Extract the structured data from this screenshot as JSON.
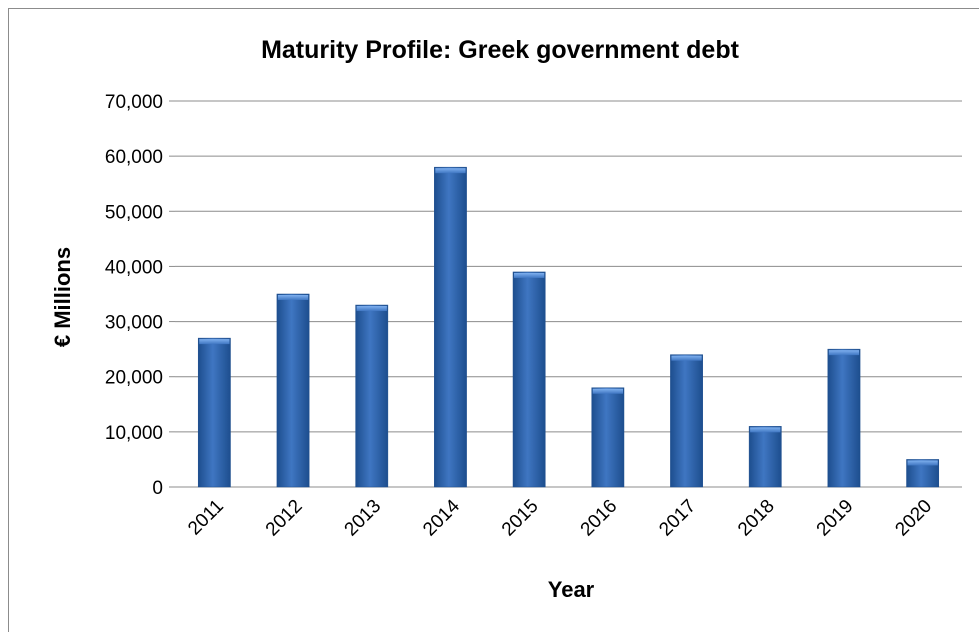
{
  "chart_data": {
    "type": "bar",
    "title": "Maturity Profile: Greek government debt",
    "xlabel": "Year",
    "ylabel": "€ Millions",
    "categories": [
      "2011",
      "2012",
      "2013",
      "2014",
      "2015",
      "2016",
      "2017",
      "2018",
      "2019",
      "2020"
    ],
    "values": [
      27000,
      35000,
      33000,
      58000,
      39000,
      18000,
      24000,
      11000,
      25000,
      5000
    ],
    "ylim": [
      0,
      70000
    ],
    "yticks": [
      0,
      10000,
      20000,
      30000,
      40000,
      50000,
      60000,
      70000
    ],
    "ytick_labels": [
      "0",
      "10,000",
      "20,000",
      "30,000",
      "40,000",
      "50,000",
      "60,000",
      "70,000"
    ],
    "grid": true,
    "legend": "none",
    "bar_color": "#3f76c2",
    "bar_color_dark": "#1d4e8e",
    "bar_color_light": "#7fb0ef"
  }
}
